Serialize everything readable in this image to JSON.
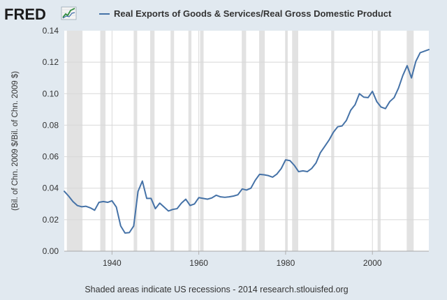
{
  "header": {
    "logo_text": "FRED",
    "logo_icon": "trend-chart-icon",
    "legend_label": "Real Exports of Goods & Services/Real Gross Domestic Product"
  },
  "footer": {
    "text": "Shaded areas indicate US recessions - 2014 research.stlouisfed.org"
  },
  "colors": {
    "background": "#e1e9f0",
    "plot_background": "#ffffff",
    "series": "#4572a7",
    "recession": "#e2e2e2",
    "grid": "#d8d8d8"
  },
  "chart_data": {
    "type": "line",
    "title": "",
    "xlabel": "",
    "ylabel": "(Bil. of Chn. 2009 $/Bil. of Chn. 2009 $)",
    "xlim": [
      1929,
      2013
    ],
    "ylim": [
      0.0,
      0.14
    ],
    "x_ticks": [
      "1940",
      "1960",
      "1980",
      "2000"
    ],
    "y_ticks": [
      "0.00",
      "0.02",
      "0.04",
      "0.06",
      "0.08",
      "0.10",
      "0.12",
      "0.14"
    ],
    "grid": true,
    "legend": "top",
    "recessions": [
      [
        1929.6,
        1933.2
      ],
      [
        1937.3,
        1938.5
      ],
      [
        1945.0,
        1945.8
      ],
      [
        1948.8,
        1949.8
      ],
      [
        1953.5,
        1954.3
      ],
      [
        1957.6,
        1958.3
      ],
      [
        1960.3,
        1961.1
      ],
      [
        1969.9,
        1970.9
      ],
      [
        1973.9,
        1975.2
      ],
      [
        1980.0,
        1980.5
      ],
      [
        1981.5,
        1982.9
      ],
      [
        1990.5,
        1991.2
      ],
      [
        2001.2,
        2001.9
      ],
      [
        2007.9,
        2009.5
      ]
    ],
    "series": [
      {
        "name": "Real Exports of Goods & Services/Real Gross Domestic Product",
        "x": [
          1929,
          1930,
          1931,
          1932,
          1933,
          1934,
          1935,
          1936,
          1937,
          1938,
          1939,
          1940,
          1941,
          1942,
          1943,
          1944,
          1945,
          1946,
          1947,
          1948,
          1949,
          1950,
          1951,
          1952,
          1953,
          1954,
          1955,
          1956,
          1957,
          1958,
          1959,
          1960,
          1961,
          1962,
          1963,
          1964,
          1965,
          1966,
          1967,
          1968,
          1969,
          1970,
          1971,
          1972,
          1973,
          1974,
          1975,
          1976,
          1977,
          1978,
          1979,
          1980,
          1981,
          1982,
          1983,
          1984,
          1985,
          1986,
          1987,
          1988,
          1989,
          1990,
          1991,
          1992,
          1993,
          1994,
          1995,
          1996,
          1997,
          1998,
          1999,
          2000,
          2001,
          2002,
          2003,
          2004,
          2005,
          2006,
          2007,
          2008,
          2009,
          2010,
          2011,
          2012,
          2013
        ],
        "y": [
          0.038,
          0.035,
          0.0315,
          0.029,
          0.0282,
          0.0285,
          0.0275,
          0.026,
          0.031,
          0.0315,
          0.031,
          0.032,
          0.028,
          0.016,
          0.0115,
          0.0118,
          0.016,
          0.038,
          0.0445,
          0.0335,
          0.0335,
          0.027,
          0.0305,
          0.028,
          0.0255,
          0.0265,
          0.027,
          0.0305,
          0.033,
          0.029,
          0.03,
          0.034,
          0.0335,
          0.033,
          0.0338,
          0.0355,
          0.0345,
          0.0342,
          0.0345,
          0.035,
          0.0358,
          0.0395,
          0.0388,
          0.04,
          0.045,
          0.0488,
          0.0485,
          0.048,
          0.047,
          0.049,
          0.0525,
          0.058,
          0.0575,
          0.0545,
          0.0505,
          0.051,
          0.0505,
          0.0525,
          0.056,
          0.0625,
          0.0665,
          0.0705,
          0.0755,
          0.079,
          0.0795,
          0.083,
          0.0895,
          0.093,
          0.1,
          0.0978,
          0.0975,
          0.1015,
          0.095,
          0.0915,
          0.0905,
          0.095,
          0.0975,
          0.1035,
          0.1115,
          0.1178,
          0.11,
          0.1205,
          0.126,
          0.127,
          0.128
        ]
      }
    ]
  }
}
